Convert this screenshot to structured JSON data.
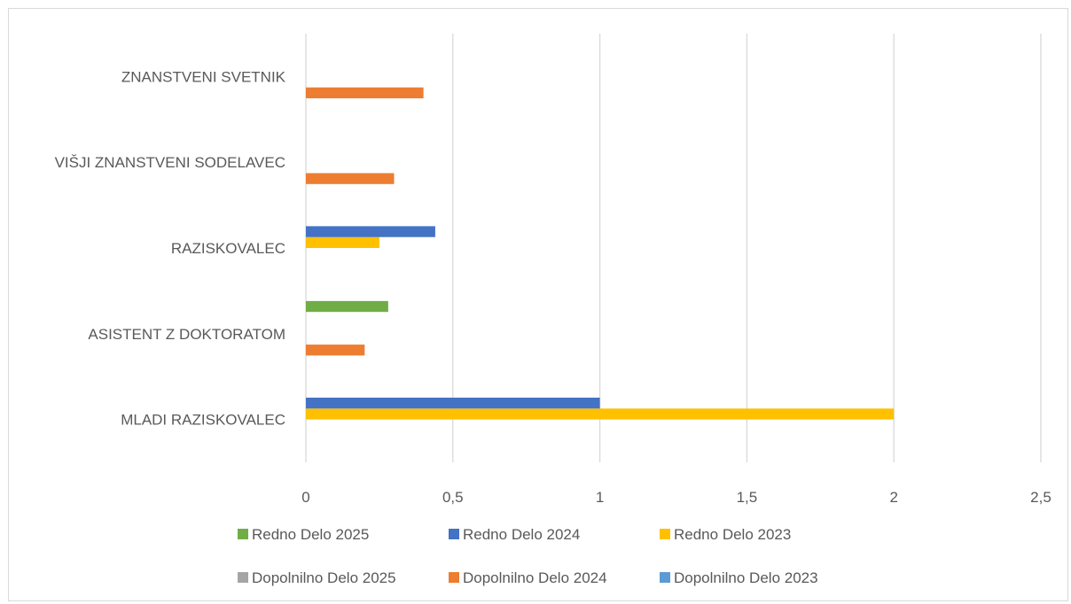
{
  "chart_data": {
    "type": "bar",
    "orientation": "horizontal",
    "title": "",
    "xlabel": "",
    "ylabel": "",
    "xlim": [
      0,
      2.5
    ],
    "x_ticks": [
      "0",
      "0,5",
      "1",
      "1,5",
      "2",
      "2,5"
    ],
    "x_tick_values": [
      0,
      0.5,
      1,
      1.5,
      2,
      2.5
    ],
    "grid": true,
    "legend_position": "bottom",
    "categories": [
      "MLADI RAZISKOVALEC",
      "ASISTENT Z DOKTORATOM",
      "RAZISKOVALEC",
      "VIŠJI ZNANSTVENI SODELAVEC",
      "ZNANSTVENI SVETNIK"
    ],
    "series": [
      {
        "name": "Dopolnilno Delo 2023",
        "color": "#5b9bd5",
        "values": [
          0,
          0,
          0,
          0,
          0
        ]
      },
      {
        "name": "Dopolnilno Delo 2024",
        "color": "#ed7d31",
        "values": [
          0,
          0.2,
          0,
          0.3,
          0.4
        ]
      },
      {
        "name": "Dopolnilno Delo 2025",
        "color": "#a5a5a5",
        "values": [
          0,
          0,
          0,
          0,
          0
        ]
      },
      {
        "name": "Redno Delo 2023",
        "color": "#ffc000",
        "values": [
          2,
          0,
          0.25,
          0,
          0
        ]
      },
      {
        "name": "Redno Delo 2024",
        "color": "#4472c4",
        "values": [
          1,
          0,
          0.44,
          0,
          0
        ]
      },
      {
        "name": "Redno Delo 2025",
        "color": "#70ad47",
        "values": [
          0,
          0.28,
          0,
          0,
          0
        ]
      }
    ],
    "legend_rows": [
      [
        "Redno Delo 2025",
        "Redno Delo 2024",
        "Redno Delo 2023"
      ],
      [
        "Dopolnilno Delo 2025",
        "Dopolnilno Delo 2024",
        "Dopolnilno Delo 2023"
      ]
    ]
  }
}
